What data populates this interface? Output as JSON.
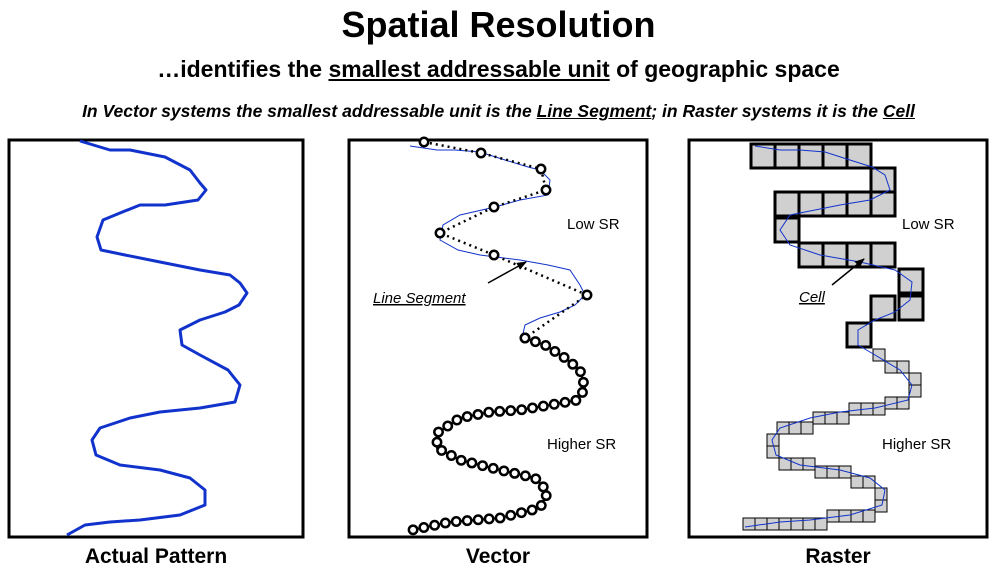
{
  "title": "Spatial Resolution",
  "subtitle": {
    "pre": "…identifies the ",
    "emph": "smallest addressable unit",
    "post": " of geographic space"
  },
  "description": {
    "part1": "In Vector systems the smallest addressable unit is the ",
    "emph1": "Line Segment",
    "part2": "; in Raster systems it is the ",
    "emph2": "Cell"
  },
  "panels": {
    "actual": {
      "caption": "Actual Pattern"
    },
    "vector": {
      "caption": "Vector",
      "low_label": "Low SR",
      "high_label": "Higher SR",
      "pointer_label": "Line Segment"
    },
    "raster": {
      "caption": "Raster",
      "low_label": "Low SR",
      "high_label": "Higher SR",
      "pointer_label": "Cell"
    }
  },
  "colors": {
    "line": "#1133cc",
    "frame": "#000000",
    "cell_fill": "#d0d0d0"
  }
}
